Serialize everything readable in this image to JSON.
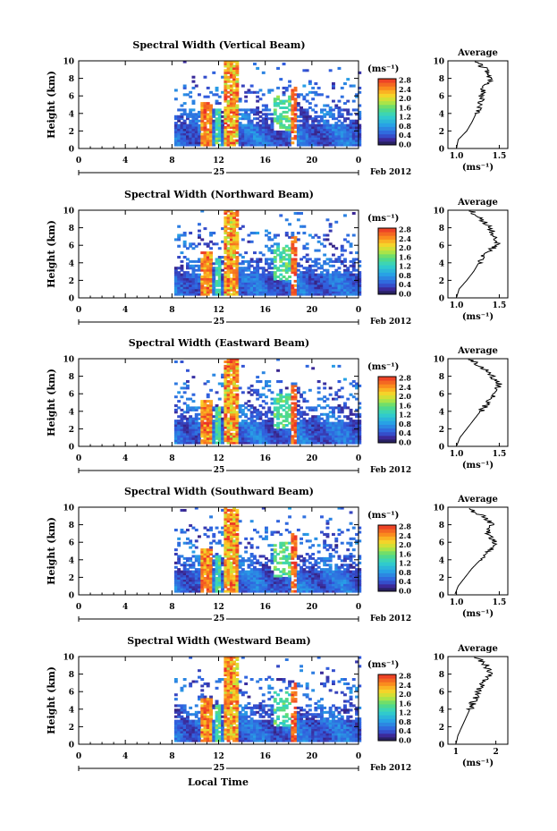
{
  "figure": {
    "date_label": "Feb 2012",
    "day_label": "25",
    "xlabel_bottom": "Local Time",
    "cbar_unit": "(ms⁻¹)",
    "avg_title": "Average",
    "avg_xlabel": "(ms⁻¹)"
  },
  "chart_data": [
    {
      "type": "heatmap",
      "title": "Spectral Width (Vertical Beam)",
      "ylabel": "Height (km)",
      "xlim": [
        0,
        24
      ],
      "ylim": [
        0,
        10
      ],
      "xticks": [
        "0",
        "4",
        "8",
        "12",
        "16",
        "20",
        "0"
      ],
      "yticks": [
        "0",
        "2",
        "4",
        "6",
        "8",
        "10"
      ],
      "colorbar": {
        "unit": "(ms⁻¹)",
        "ticks": [
          "0.0",
          "0.4",
          "0.8",
          "1.2",
          "1.6",
          "2.0",
          "2.4",
          "2.8"
        ]
      },
      "avg_profile": {
        "xticks": [
          "1.0",
          "1.5"
        ],
        "xlim": [
          0.9,
          1.6
        ],
        "heights": [
          0,
          1,
          2,
          3,
          4,
          5,
          6,
          7,
          8,
          9,
          10
        ],
        "values": [
          1.0,
          1.02,
          1.12,
          1.18,
          1.23,
          1.27,
          1.3,
          1.32,
          1.4,
          1.35,
          1.2
        ]
      }
    },
    {
      "type": "heatmap",
      "title": "Spectral Width (Northward Beam)",
      "ylabel": "Height (km)",
      "xlim": [
        0,
        24
      ],
      "ylim": [
        0,
        10
      ],
      "xticks": [
        "0",
        "4",
        "8",
        "12",
        "16",
        "20",
        "0"
      ],
      "yticks": [
        "0",
        "2",
        "4",
        "6",
        "8",
        "10"
      ],
      "colorbar": {
        "unit": "(ms⁻¹)",
        "ticks": [
          "0.0",
          "0.4",
          "0.8",
          "1.2",
          "1.6",
          "2.0",
          "2.4",
          "2.8"
        ]
      },
      "avg_profile": {
        "xticks": [
          "1.0",
          "1.5"
        ],
        "xlim": [
          0.9,
          1.6
        ],
        "heights": [
          0,
          1,
          2,
          3,
          4,
          5,
          6,
          7,
          8,
          9,
          10
        ],
        "values": [
          1.0,
          1.03,
          1.12,
          1.2,
          1.26,
          1.32,
          1.48,
          1.45,
          1.38,
          1.3,
          1.15
        ]
      }
    },
    {
      "type": "heatmap",
      "title": "Spectral Width (Eastward Beam)",
      "ylabel": "Height (km)",
      "xlim": [
        0,
        24
      ],
      "ylim": [
        0,
        10
      ],
      "xticks": [
        "0",
        "4",
        "8",
        "12",
        "16",
        "20",
        "0"
      ],
      "yticks": [
        "0",
        "2",
        "4",
        "6",
        "8",
        "10"
      ],
      "colorbar": {
        "unit": "(ms⁻¹)",
        "ticks": [
          "0.0",
          "0.4",
          "0.8",
          "1.2",
          "1.6",
          "2.0",
          "2.4",
          "2.8"
        ]
      },
      "avg_profile": {
        "xticks": [
          "1.0",
          "1.5"
        ],
        "xlim": [
          0.9,
          1.6
        ],
        "heights": [
          0,
          1,
          2,
          3,
          4,
          5,
          6,
          7,
          8,
          9,
          10
        ],
        "values": [
          1.0,
          1.04,
          1.12,
          1.2,
          1.28,
          1.38,
          1.45,
          1.5,
          1.42,
          1.3,
          1.15
        ]
      }
    },
    {
      "type": "heatmap",
      "title": "Spectral Width (Southward Beam)",
      "ylabel": "Height (km)",
      "xlim": [
        0,
        24
      ],
      "ylim": [
        0,
        10
      ],
      "xticks": [
        "0",
        "4",
        "8",
        "12",
        "16",
        "20",
        "0"
      ],
      "yticks": [
        "0",
        "2",
        "4",
        "6",
        "8",
        "10"
      ],
      "colorbar": {
        "unit": "(ms⁻¹)",
        "ticks": [
          "0.0",
          "0.4",
          "0.8",
          "1.2",
          "1.6",
          "2.0",
          "2.4",
          "2.8"
        ]
      },
      "avg_profile": {
        "xticks": [
          "1.0",
          "1.5"
        ],
        "xlim": [
          0.9,
          1.6
        ],
        "heights": [
          0,
          1,
          2,
          3,
          4,
          5,
          6,
          7,
          8,
          9,
          10
        ],
        "values": [
          0.98,
          1.02,
          1.1,
          1.18,
          1.28,
          1.38,
          1.45,
          1.35,
          1.42,
          1.3,
          1.12
        ]
      }
    },
    {
      "type": "heatmap",
      "title": "Spectral Width (Westward Beam)",
      "ylabel": "Height (km)",
      "xlim": [
        0,
        24
      ],
      "ylim": [
        0,
        10
      ],
      "xticks": [
        "0",
        "4",
        "8",
        "12",
        "16",
        "20",
        "0"
      ],
      "yticks": [
        "0",
        "2",
        "4",
        "6",
        "8",
        "10"
      ],
      "colorbar": {
        "unit": "(ms⁻¹)",
        "ticks": [
          "0.0",
          "0.4",
          "0.8",
          "1.2",
          "1.6",
          "2.0",
          "2.4",
          "2.8"
        ]
      },
      "avg_profile": {
        "xticks": [
          "1",
          "2"
        ],
        "xlim": [
          0.8,
          2.3
        ],
        "heights": [
          0,
          1,
          2,
          3,
          4,
          5,
          6,
          7,
          8,
          9,
          10
        ],
        "values": [
          1.0,
          1.05,
          1.15,
          1.25,
          1.35,
          1.45,
          1.55,
          1.7,
          1.85,
          1.75,
          1.5
        ]
      }
    }
  ]
}
